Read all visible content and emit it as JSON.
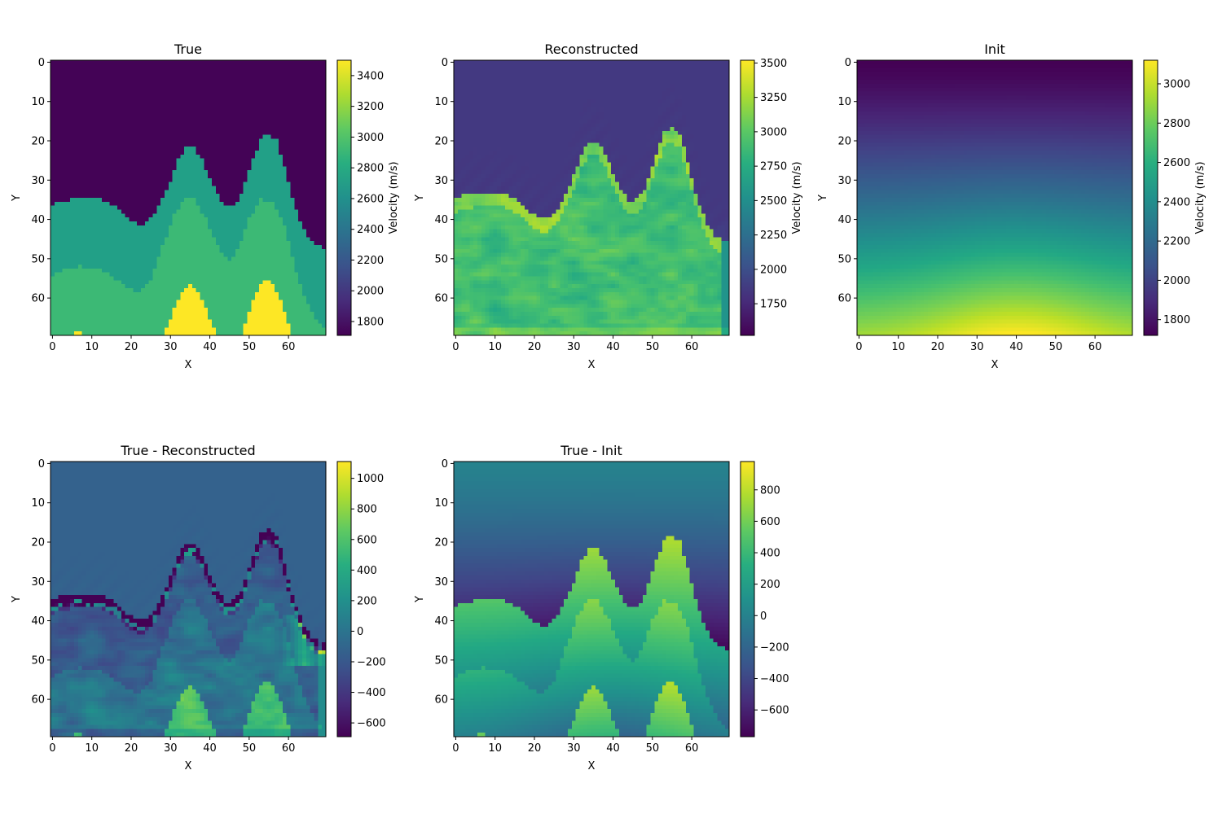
{
  "chart_data": [
    {
      "type": "heatmap",
      "title": "True",
      "xlabel": "X",
      "ylabel": "Y",
      "colormap": "viridis",
      "grid_size": [
        70,
        70
      ],
      "xlim": [
        -0.5,
        69.5
      ],
      "ylim": [
        69.5,
        -0.5
      ],
      "xticks": [
        0,
        10,
        20,
        30,
        40,
        50,
        60
      ],
      "yticks": [
        0,
        10,
        20,
        30,
        40,
        50,
        60
      ],
      "colorbar": {
        "label": "Velocity (m/s)",
        "min": 1710,
        "max": 3500,
        "ticks": [
          1800,
          2000,
          2200,
          2400,
          2600,
          2800,
          3000,
          3200,
          3400
        ]
      },
      "model": {
        "layers": [
          {
            "name": "top",
            "value": 1720
          },
          {
            "name": "middle",
            "value": 2720
          },
          {
            "name": "lower",
            "value": 2920
          },
          {
            "name": "domes",
            "value": 3500
          }
        ],
        "top_boundary": [
          {
            "x": 0,
            "y": 36.5
          },
          {
            "x": 2,
            "y": 35.5
          },
          {
            "x": 5,
            "y": 34.8
          },
          {
            "x": 12,
            "y": 35
          },
          {
            "x": 16,
            "y": 37
          },
          {
            "x": 20,
            "y": 40.5
          },
          {
            "x": 23,
            "y": 41.5
          },
          {
            "x": 26,
            "y": 39
          },
          {
            "x": 29,
            "y": 33
          },
          {
            "x": 32,
            "y": 25
          },
          {
            "x": 34,
            "y": 22
          },
          {
            "x": 36,
            "y": 22
          },
          {
            "x": 38,
            "y": 25
          },
          {
            "x": 41,
            "y": 32
          },
          {
            "x": 44,
            "y": 37
          },
          {
            "x": 46,
            "y": 36.5
          },
          {
            "x": 48,
            "y": 34
          },
          {
            "x": 51,
            "y": 25
          },
          {
            "x": 53,
            "y": 19.5
          },
          {
            "x": 55,
            "y": 18.5
          },
          {
            "x": 57,
            "y": 20
          },
          {
            "x": 59,
            "y": 27
          },
          {
            "x": 61,
            "y": 35
          },
          {
            "x": 64,
            "y": 43
          },
          {
            "x": 66,
            "y": 46
          },
          {
            "x": 69,
            "y": 47.5
          }
        ],
        "middle_boundary": [
          {
            "x": 0,
            "y": 54.5
          },
          {
            "x": 3,
            "y": 53
          },
          {
            "x": 7,
            "y": 52
          },
          {
            "x": 11,
            "y": 52.5
          },
          {
            "x": 15,
            "y": 54.5
          },
          {
            "x": 19,
            "y": 57.5
          },
          {
            "x": 22,
            "y": 58.5
          },
          {
            "x": 25,
            "y": 55.5
          },
          {
            "x": 28,
            "y": 47
          },
          {
            "x": 31,
            "y": 39
          },
          {
            "x": 34,
            "y": 34.5
          },
          {
            "x": 36,
            "y": 35
          },
          {
            "x": 39,
            "y": 40
          },
          {
            "x": 42,
            "y": 47
          },
          {
            "x": 45,
            "y": 50.5
          },
          {
            "x": 47,
            "y": 48
          },
          {
            "x": 50,
            "y": 40
          },
          {
            "x": 53,
            "y": 35
          },
          {
            "x": 56,
            "y": 35.5
          },
          {
            "x": 59,
            "y": 42
          },
          {
            "x": 62,
            "y": 54
          },
          {
            "x": 65,
            "y": 62
          },
          {
            "x": 67,
            "y": 66
          },
          {
            "x": 69,
            "y": 68
          }
        ],
        "domes": [
          {
            "cx": 35,
            "apex": 56.5,
            "base": 69.5,
            "half_width": 6.5
          },
          {
            "cx": 54.5,
            "apex": 55.5,
            "base": 69.5,
            "half_width": 6.5
          }
        ],
        "bottom_notch": {
          "x": [
            6,
            7
          ],
          "y": 69
        }
      }
    },
    {
      "type": "heatmap",
      "title": "Reconstructed",
      "xlabel": "X",
      "ylabel": "Y",
      "colormap": "viridis",
      "grid_size": [
        70,
        70
      ],
      "xlim": [
        -0.5,
        69.5
      ],
      "ylim": [
        69.5,
        -0.5
      ],
      "xticks": [
        0,
        10,
        20,
        30,
        40,
        50,
        60
      ],
      "yticks": [
        0,
        10,
        20,
        30,
        40,
        50,
        60
      ],
      "colorbar": {
        "label": "Velocity (m/s)",
        "min": 1520,
        "max": 3520,
        "ticks": [
          1750,
          2000,
          2250,
          2500,
          2750,
          3000,
          3250,
          3500
        ]
      },
      "description_values": {
        "top_value": 1850,
        "body_value": 2900
      }
    },
    {
      "type": "heatmap",
      "title": "Init",
      "xlabel": "X",
      "ylabel": "Y",
      "colormap": "viridis",
      "grid_size": [
        70,
        70
      ],
      "xlim": [
        -0.5,
        69.5
      ],
      "ylim": [
        69.5,
        -0.5
      ],
      "xticks": [
        0,
        10,
        20,
        30,
        40,
        50,
        60
      ],
      "yticks": [
        0,
        10,
        20,
        30,
        40,
        50,
        60
      ],
      "colorbar": {
        "label": "Velocity (m/s)",
        "min": 1720,
        "max": 3120,
        "ticks": [
          1800,
          2000,
          2200,
          2400,
          2600,
          2800,
          3000
        ]
      },
      "smooth_gradient": {
        "top_value": 1720,
        "bottom_center_value": 3120,
        "bottom_edge_value": 2900,
        "center_x": 40
      }
    },
    {
      "type": "heatmap",
      "title": "True - Reconstructed",
      "xlabel": "X",
      "ylabel": "Y",
      "colormap": "viridis",
      "grid_size": [
        70,
        70
      ],
      "xlim": [
        -0.5,
        69.5
      ],
      "ylim": [
        69.5,
        -0.5
      ],
      "xticks": [
        0,
        10,
        20,
        30,
        40,
        50,
        60
      ],
      "yticks": [
        0,
        10,
        20,
        30,
        40,
        50,
        60
      ],
      "colorbar": {
        "label": "",
        "min": -690,
        "max": 1110,
        "ticks": [
          -600,
          -400,
          -200,
          0,
          200,
          400,
          600,
          800,
          1000
        ]
      }
    },
    {
      "type": "heatmap",
      "title": "True - Init",
      "xlabel": "X",
      "ylabel": "Y",
      "colormap": "viridis",
      "grid_size": [
        70,
        70
      ],
      "xlim": [
        -0.5,
        69.5
      ],
      "ylim": [
        69.5,
        -0.5
      ],
      "xticks": [
        0,
        10,
        20,
        30,
        40,
        50,
        60
      ],
      "yticks": [
        0,
        10,
        20,
        30,
        40,
        50,
        60
      ],
      "colorbar": {
        "label": "",
        "min": -770,
        "max": 980,
        "ticks": [
          -600,
          -400,
          -200,
          0,
          200,
          400,
          600,
          800
        ]
      }
    }
  ]
}
